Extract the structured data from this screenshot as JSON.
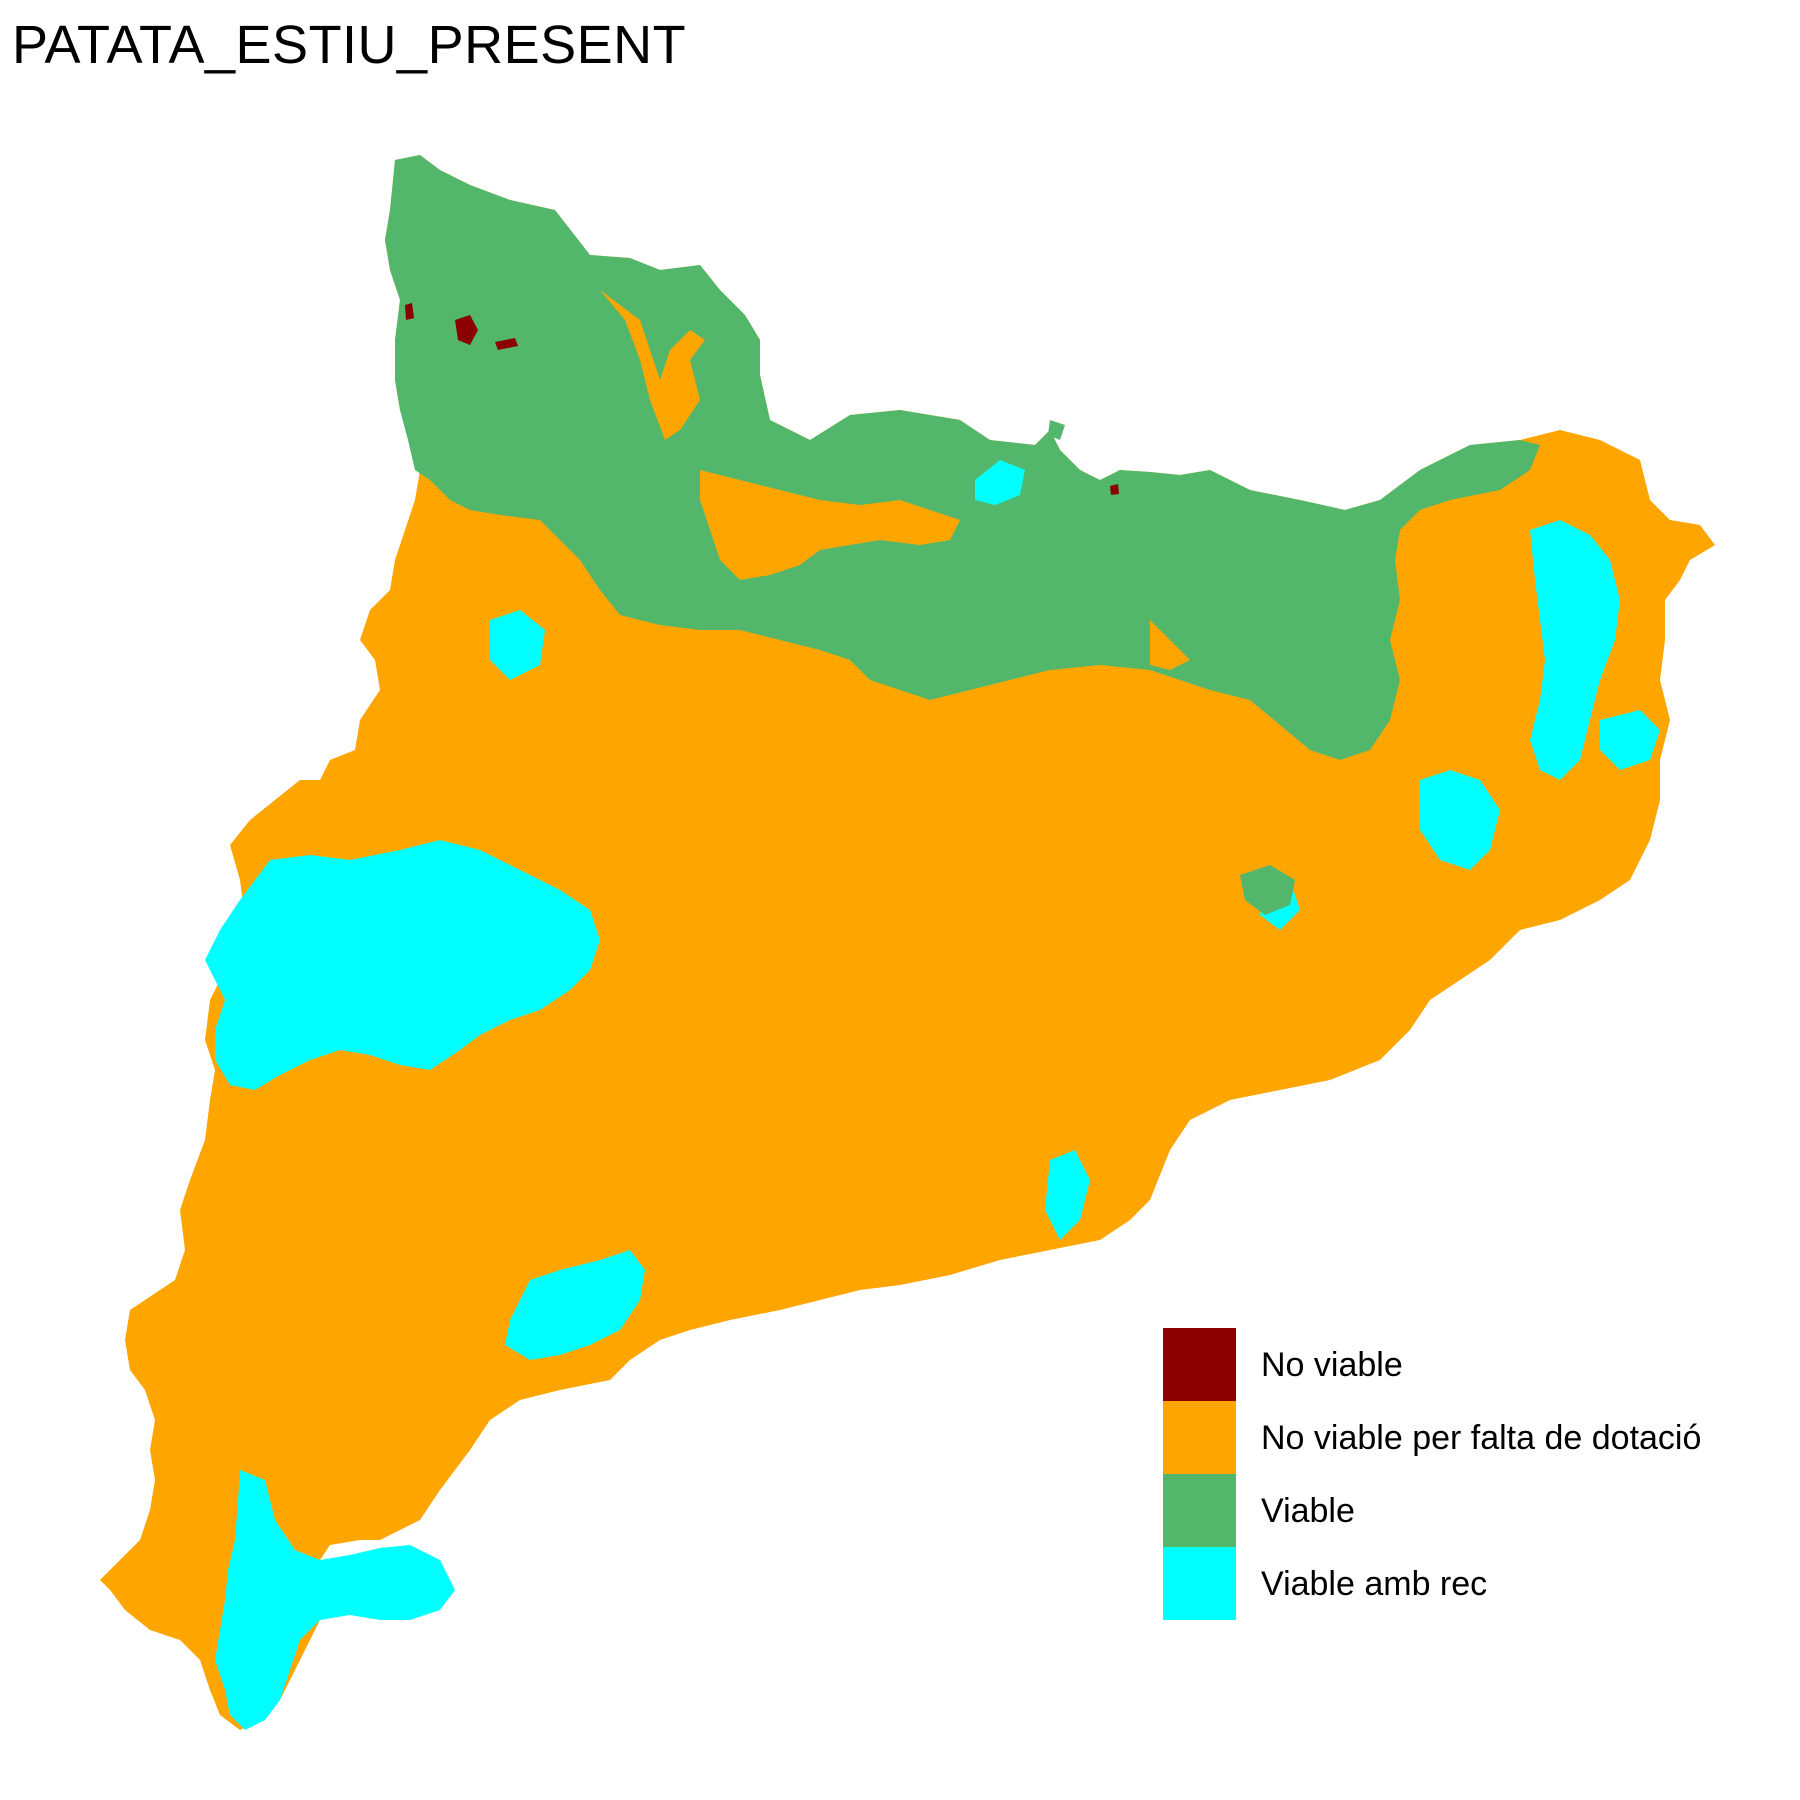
{
  "title": "PATATA_ESTIU_PRESENT",
  "colors": {
    "no_viable": "#8B0000",
    "no_viable_dotacio": "#FFA500",
    "viable": "#52B76A",
    "viable_rec": "#00FFFF"
  },
  "legend": [
    {
      "key": "no_viable",
      "label": "No viable",
      "color": "#8B0000"
    },
    {
      "key": "no_viable_dotacio",
      "label": "No viable per falta de dotació",
      "color": "#FFA500"
    },
    {
      "key": "viable",
      "label": "Viable",
      "color": "#52B76A"
    },
    {
      "key": "viable_rec",
      "label": "Viable amb rec",
      "color": "#00FFFF"
    }
  ]
}
